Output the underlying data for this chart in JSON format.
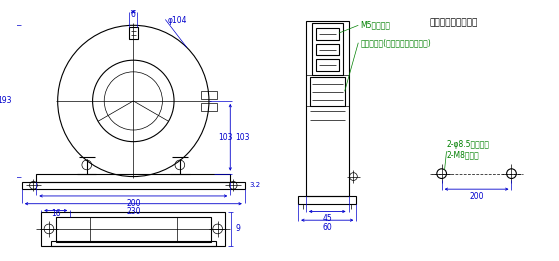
{
  "bg_color": "#ffffff",
  "line_color": "#000000",
  "dim_color": "#0000cd",
  "annotation_color": "#008000",
  "fig_width": 5.59,
  "fig_height": 2.61,
  "title_text": "取りつけ穴加工寸法",
  "label_m5": "M5端子ねじ",
  "label_sep": "セパレータ(取りはずしできます)",
  "label_hole": "2-φ8.5穴または\n2-M8ねじ穴",
  "dim_phi104": "φ104",
  "dim_6": "6",
  "dim_193": "193",
  "dim_103": "103",
  "dim_200a": "200",
  "dim_230": "230",
  "dim_32": "3.2",
  "dim_16": "16",
  "dim_9": "9",
  "dim_45": "45",
  "dim_60": "60",
  "dim_200b": "200"
}
